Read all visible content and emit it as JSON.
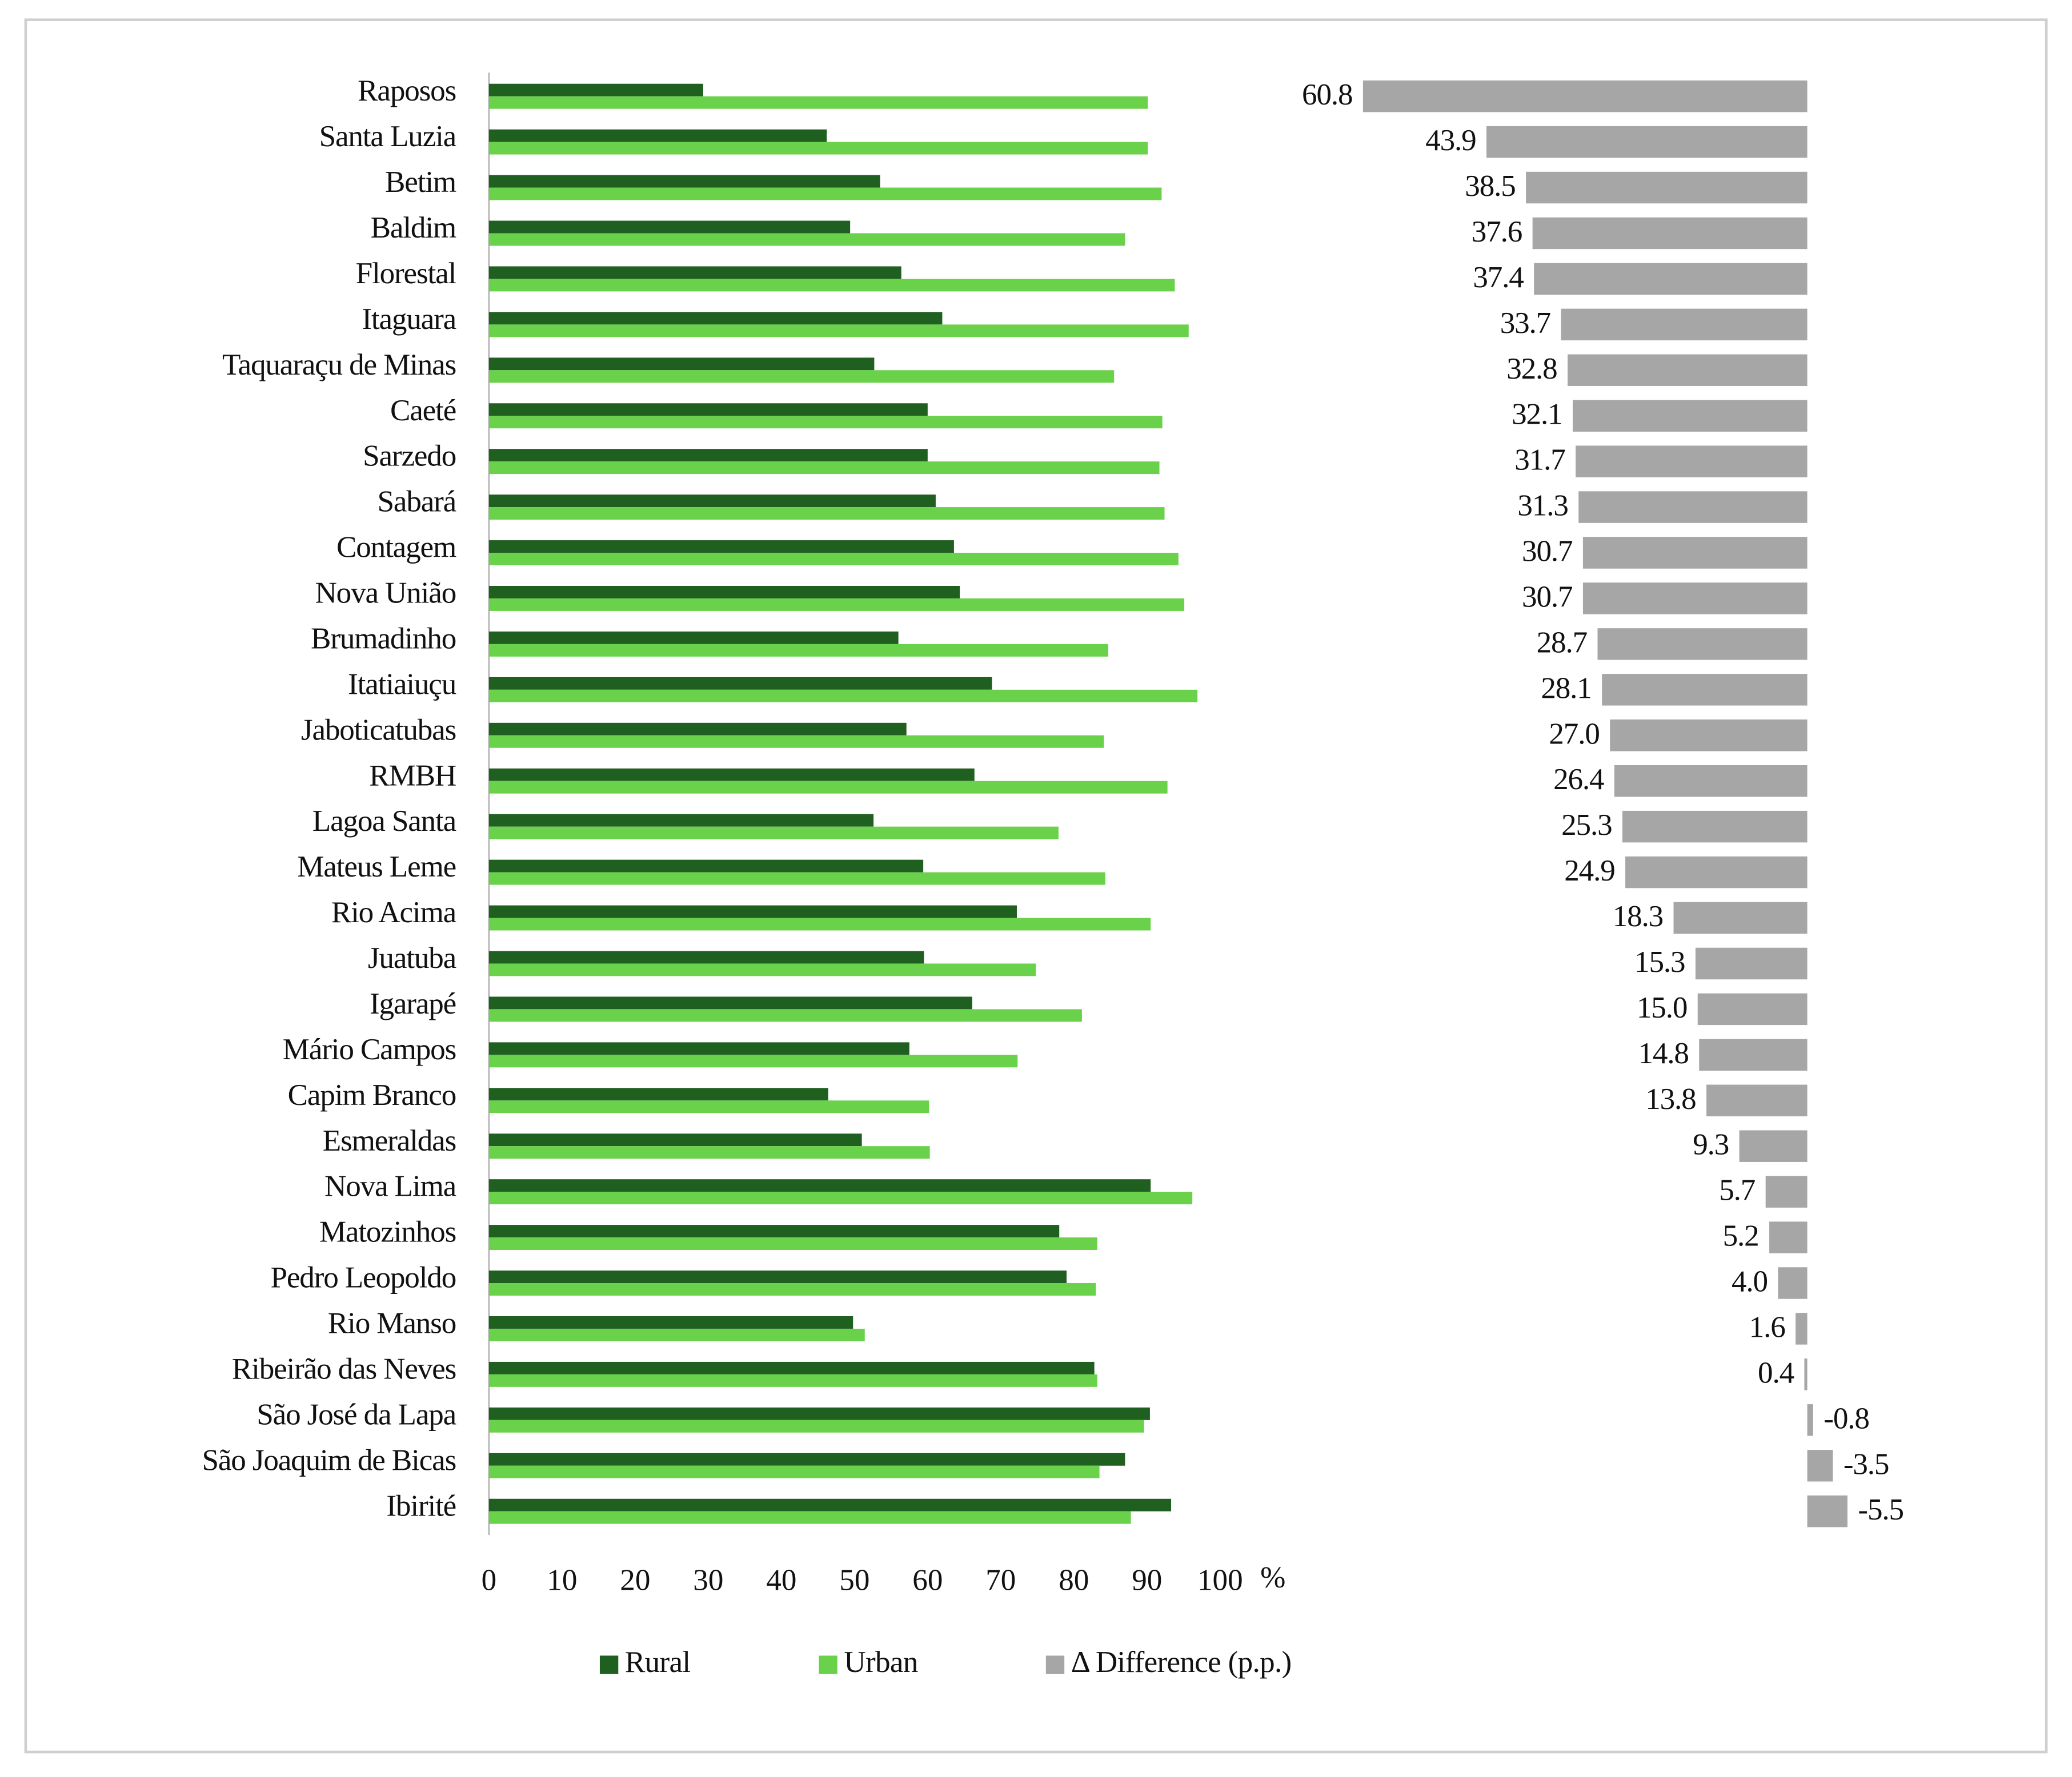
{
  "chart_data": {
    "type": "bar",
    "orientation": "horizontal",
    "categories": [
      "Raposos",
      "Santa Luzia",
      "Betim",
      "Baldim",
      "Florestal",
      "Itaguara",
      "Taquaraçu de Minas",
      "Caeté",
      "Sarzedo",
      "Sabará",
      "Contagem",
      "Nova União",
      "Brumadinho",
      "Itatiaiuçu",
      "Jaboticatubas",
      "RMBH",
      "Lagoa Santa",
      "Mateus Leme",
      "Rio Acima",
      "Juatuba",
      "Igarapé",
      "Mário Campos",
      "Capim Branco",
      "Esmeraldas",
      "Nova Lima",
      "Matozinhos",
      "Pedro Leopoldo",
      "Rio Manso",
      "Ribeirão das Neves",
      "São José da Lapa",
      "São Joaquim de Bicas",
      "Ibirité"
    ],
    "series": [
      {
        "name": "Rural",
        "color": "#1f5f1f",
        "values": [
          29.3,
          46.2,
          53.5,
          49.4,
          56.4,
          62.0,
          52.7,
          60.0,
          60.0,
          61.1,
          63.6,
          64.4,
          56.0,
          68.8,
          57.1,
          66.4,
          52.6,
          59.4,
          72.2,
          59.5,
          66.1,
          57.5,
          46.4,
          51.0,
          90.5,
          78.0,
          79.0,
          49.8,
          82.8,
          90.4,
          87.0,
          93.3
        ]
      },
      {
        "name": "Urban",
        "color": "#6ad14b",
        "values": [
          90.1,
          90.1,
          92.0,
          87.0,
          93.8,
          95.7,
          85.5,
          92.1,
          91.7,
          92.4,
          94.3,
          95.1,
          84.7,
          96.9,
          84.1,
          92.8,
          77.9,
          84.3,
          90.5,
          74.8,
          81.1,
          72.3,
          60.2,
          60.3,
          96.2,
          83.2,
          83.0,
          51.4,
          83.2,
          89.6,
          83.5,
          87.8
        ]
      },
      {
        "name": "Δ Difference (p.p.)",
        "color": "#a6a6a6",
        "axis": "x2",
        "values": [
          60.8,
          43.9,
          38.5,
          37.6,
          37.4,
          33.7,
          32.8,
          32.1,
          31.7,
          31.3,
          30.7,
          30.7,
          28.7,
          28.1,
          27.0,
          26.4,
          25.3,
          24.9,
          18.3,
          15.3,
          15.0,
          14.8,
          13.8,
          9.3,
          5.7,
          5.2,
          4.0,
          1.6,
          0.4,
          -0.8,
          -3.5,
          -5.5
        ],
        "value_labels": [
          "60.8",
          "43.9",
          "38.5",
          "37.6",
          "37.4",
          "33.7",
          "32.8",
          "32.1",
          "31.7",
          "31.3",
          "30.7",
          "30.7",
          "28.7",
          "28.1",
          "27.0",
          "26.4",
          "25.3",
          "24.9",
          "18.3",
          "15.3",
          "15.0",
          "14.8",
          "13.8",
          "9.3",
          "5.7",
          "5.2",
          "4.0",
          "1.6",
          "0.4",
          "-0.8",
          "-3.5",
          "-5.5"
        ]
      }
    ],
    "xlabel": "%",
    "xlim": [
      0,
      100
    ],
    "xticks": [
      0,
      10,
      20,
      30,
      40,
      50,
      60,
      70,
      80,
      90,
      100
    ],
    "x2lim": [
      65,
      -17
    ],
    "legend": "bottom"
  }
}
